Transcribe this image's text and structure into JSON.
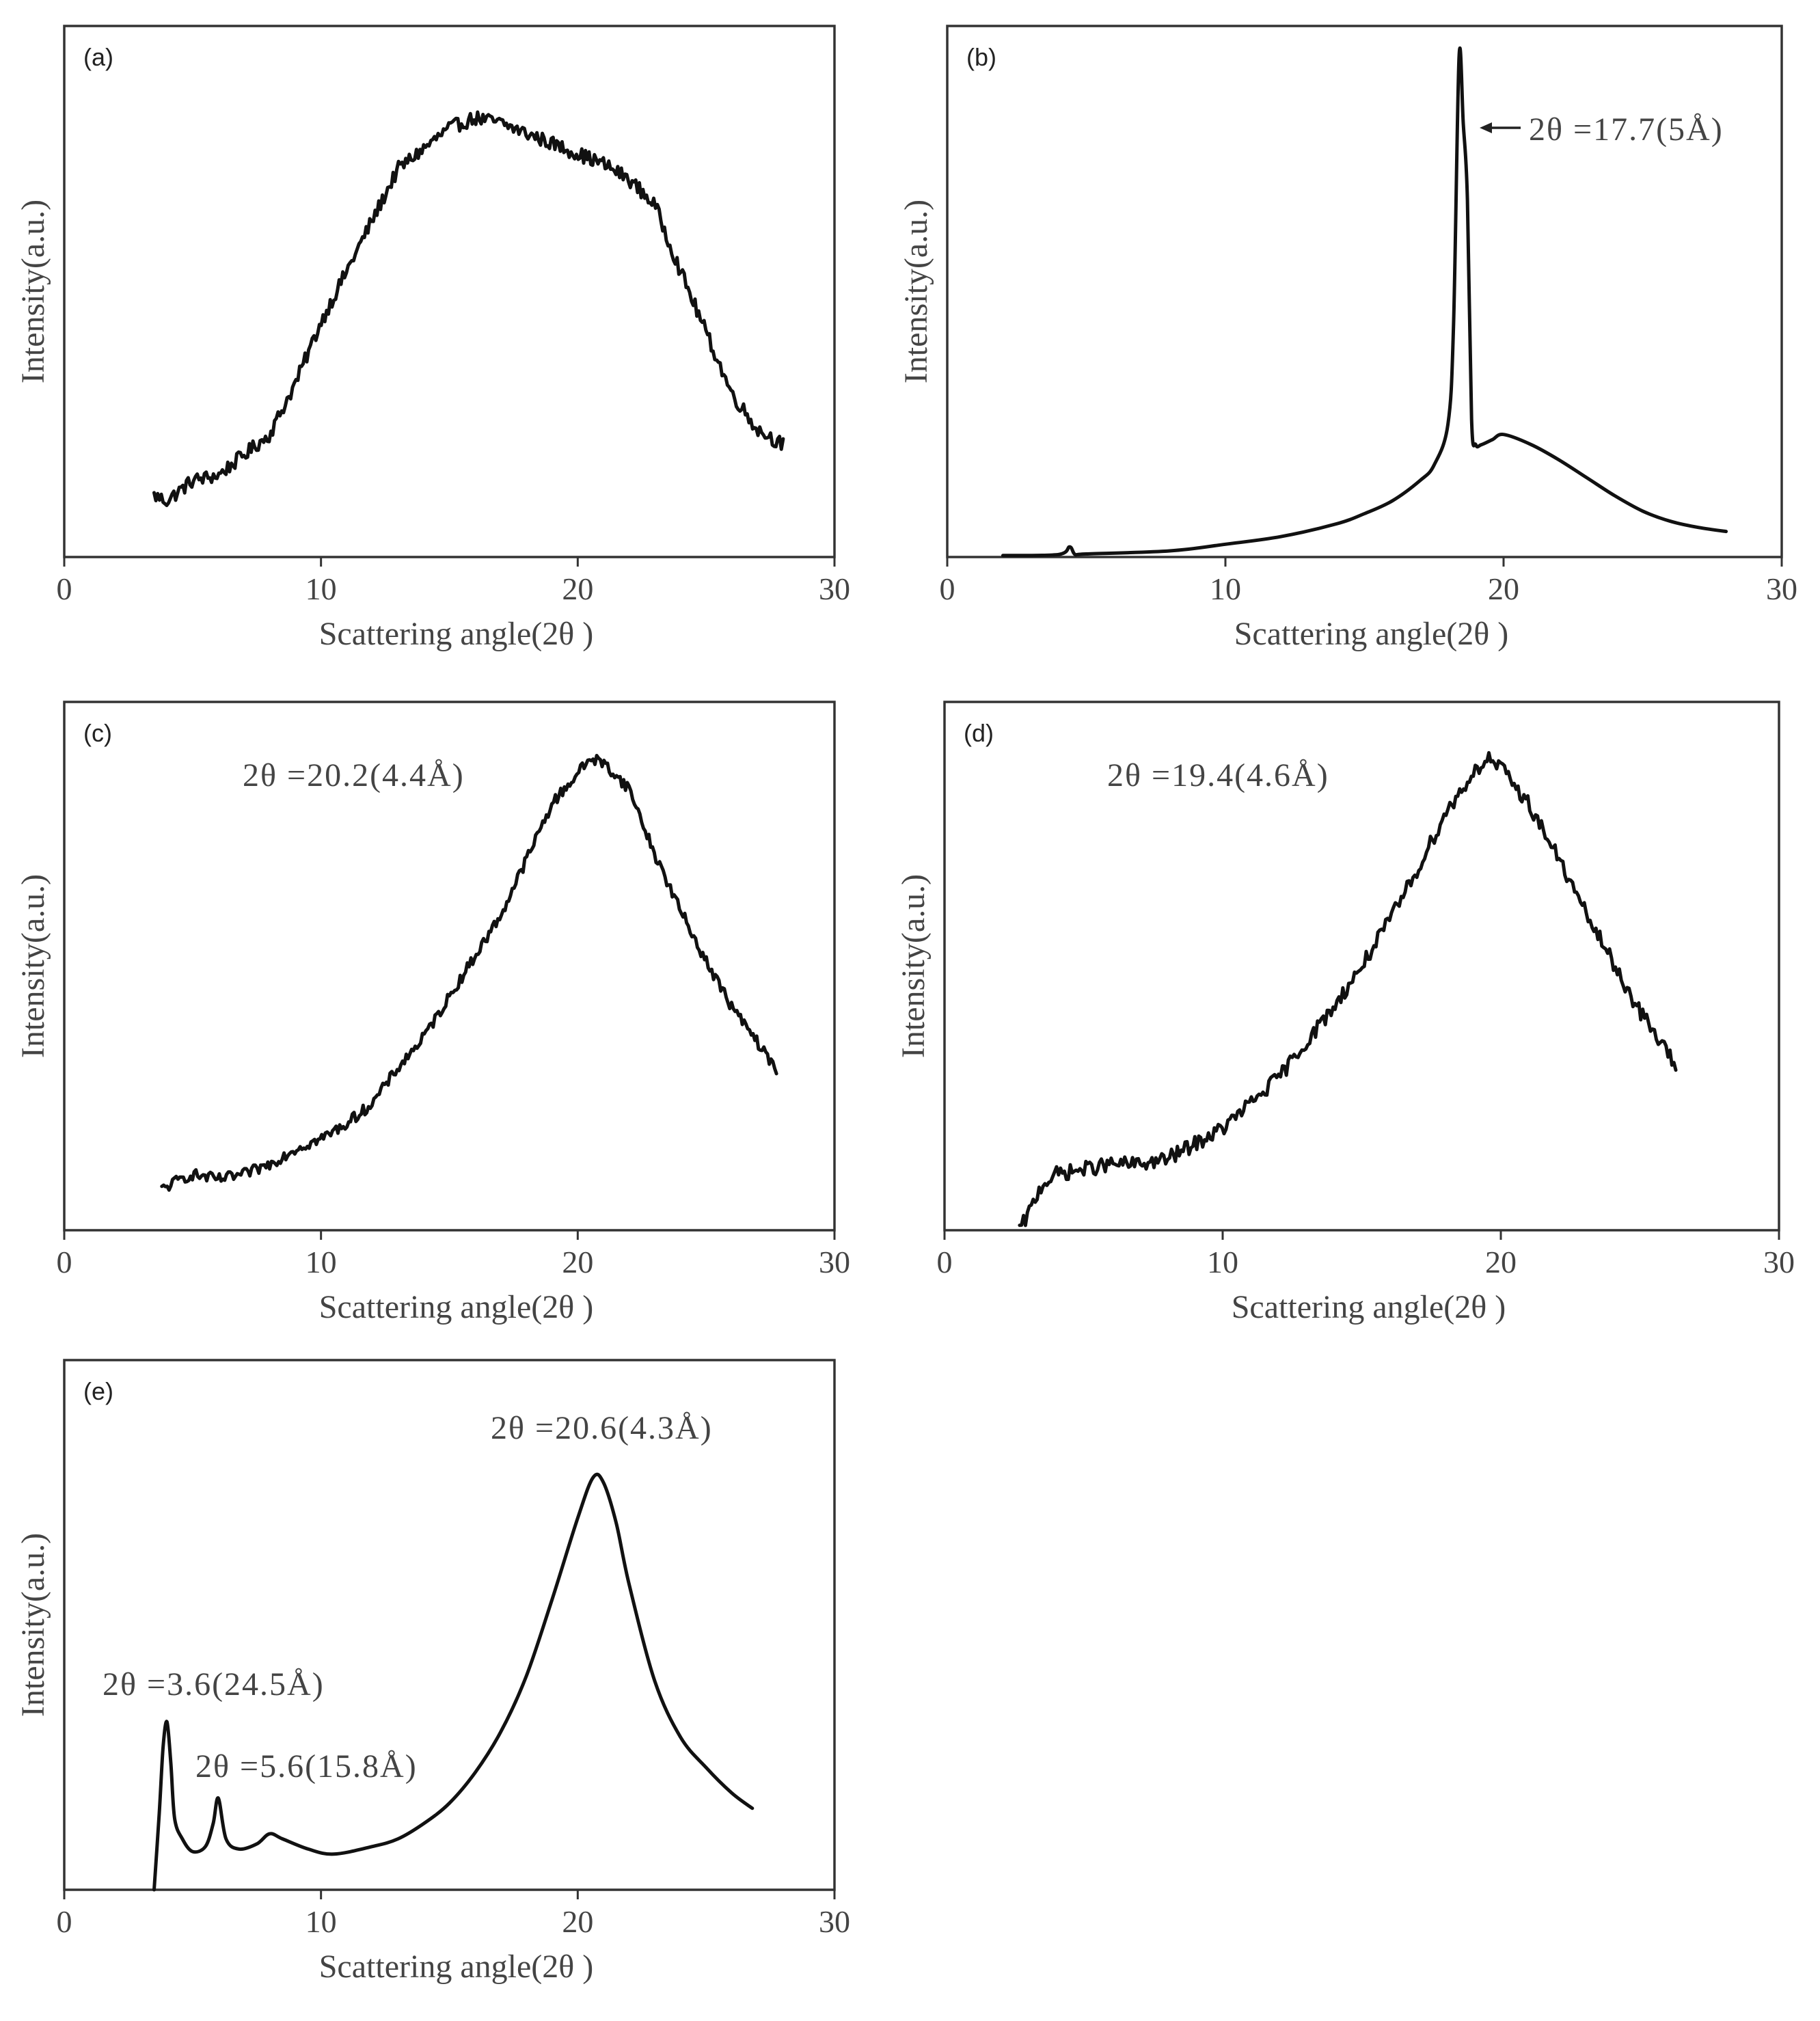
{
  "figure": {
    "background": "#ffffff",
    "line_color": "#111111",
    "axis_color": "#333333"
  },
  "chart_data": [
    {
      "id": "a",
      "type": "line",
      "panel_label": "(a)",
      "xlabel": "Scattering angle(2θ )",
      "ylabel": "Intensity(a.u.)",
      "xlim": [
        0,
        30
      ],
      "ylim": [
        0,
        100
      ],
      "xticks": [
        0,
        10,
        20,
        30
      ],
      "x_tick_labels": [
        "0",
        "10",
        "20",
        "30"
      ],
      "x": [
        3.5,
        4,
        5,
        6,
        7,
        8,
        9,
        10,
        11,
        12,
        13,
        14,
        15,
        16,
        17,
        18,
        19,
        20,
        21,
        22,
        23,
        24,
        25,
        26,
        27,
        28
      ],
      "y": [
        12,
        11,
        15,
        16,
        20,
        24,
        34,
        46,
        56,
        66,
        76,
        80,
        84,
        86,
        85,
        83,
        81,
        79,
        77,
        74,
        69,
        56,
        44,
        32,
        25,
        22
      ],
      "noise": 1.4,
      "annotations": []
    },
    {
      "id": "b",
      "type": "line",
      "panel_label": "(b)",
      "xlabel": "Scattering angle(2θ )",
      "ylabel": "Intensity(a.u.)",
      "xlim": [
        0,
        30
      ],
      "ylim": [
        0,
        100
      ],
      "xticks": [
        0,
        10,
        20,
        30
      ],
      "x_tick_labels": [
        "0",
        "10",
        "20",
        "30"
      ],
      "x": [
        2,
        4,
        4.4,
        4.6,
        5,
        8,
        10,
        12,
        14,
        15,
        16,
        17,
        17.5,
        18.0,
        18.2,
        18.4,
        18.55,
        18.7,
        18.85,
        19,
        19.2,
        19.6,
        20,
        21,
        22,
        23,
        24,
        25,
        26,
        27,
        28
      ],
      "y": [
        0.3,
        0.5,
        2,
        0.5,
        0.6,
        1.2,
        2.5,
        4,
        6.5,
        8.5,
        11,
        15,
        18,
        26,
        45,
        98,
        85,
        70,
        27,
        22,
        22,
        23,
        24,
        22,
        19,
        15.5,
        12,
        9,
        7,
        5.8,
        5
      ],
      "noise": 0,
      "annotations": [
        {
          "text": "2θ =17.7(5Å)",
          "arrow": true
        }
      ]
    },
    {
      "id": "c",
      "type": "line",
      "panel_label": "(c)",
      "xlabel": "Scattering angle(2θ )",
      "ylabel": "Intensity(a.u.)",
      "xlim": [
        0,
        30
      ],
      "ylim": [
        0,
        100
      ],
      "xticks": [
        0,
        10,
        20,
        30
      ],
      "x_tick_labels": [
        "0",
        "10",
        "20",
        "30"
      ],
      "x": [
        3.8,
        4.5,
        5,
        6,
        7,
        8,
        9,
        10,
        11,
        12,
        13,
        14,
        15,
        16,
        17,
        18,
        19,
        20,
        20.5,
        21,
        22,
        23,
        24,
        25,
        26,
        27,
        27.8
      ],
      "y": [
        8,
        10,
        11,
        10,
        11,
        13,
        16,
        18,
        21,
        25,
        32,
        38,
        46,
        54,
        62,
        73,
        84,
        90,
        93,
        92,
        87,
        74,
        63,
        53,
        44,
        37,
        31
      ],
      "noise": 1.1,
      "annotations": [
        {
          "text": "2θ =20.2(4.4Å)",
          "arrow": false
        }
      ]
    },
    {
      "id": "d",
      "type": "line",
      "panel_label": "(d)",
      "xlabel": "Scattering angle(2θ )",
      "ylabel": "Intensity(a.u.)",
      "xlim": [
        0,
        30
      ],
      "ylim": [
        0,
        100
      ],
      "xticks": [
        0,
        10,
        20,
        30
      ],
      "x_tick_labels": [
        "0",
        "10",
        "20",
        "30"
      ],
      "x": [
        2.7,
        3,
        3.5,
        4,
        5,
        6,
        7,
        8,
        9,
        10,
        11,
        12,
        13,
        14,
        15,
        16,
        17,
        18,
        19,
        19.5,
        20,
        21,
        22,
        23,
        24,
        25,
        26,
        26.3
      ],
      "y": [
        0,
        3,
        9,
        11,
        12,
        13,
        13,
        14,
        17,
        20,
        25,
        30,
        37,
        44,
        52,
        61,
        71,
        82,
        90,
        93,
        91,
        84,
        74,
        63,
        53,
        43,
        35,
        32
      ],
      "noise": 1.5,
      "annotations": [
        {
          "text": "2θ =19.4(4.6Å)",
          "arrow": false
        }
      ]
    },
    {
      "id": "e",
      "type": "line",
      "panel_label": "(e)",
      "xlabel": "Scattering angle(2θ )",
      "ylabel": "Intensity(a.u.)",
      "xlim": [
        0,
        30
      ],
      "ylim": [
        0,
        100
      ],
      "xticks": [
        0,
        10,
        20,
        30
      ],
      "x_tick_labels": [
        "0",
        "10",
        "20",
        "30"
      ],
      "x": [
        3.5,
        3.7,
        3.85,
        4.0,
        4.15,
        4.3,
        4.6,
        5,
        5.5,
        5.8,
        6.0,
        6.3,
        6.8,
        7.5,
        8,
        8.5,
        9.5,
        10.5,
        12,
        13,
        14,
        15,
        16,
        17,
        18,
        19,
        20,
        20.6,
        21,
        21.5,
        22,
        23,
        24,
        25,
        26,
        26.8
      ],
      "y": [
        0,
        15,
        28,
        33,
        25,
        14,
        10,
        7.5,
        8.5,
        13,
        18,
        10,
        8,
        9,
        11,
        10,
        8,
        7,
        8.5,
        10,
        13,
        17,
        23,
        31,
        42,
        57,
        73,
        81,
        80,
        72,
        60,
        41,
        30,
        24,
        19,
        16
      ],
      "noise": 0,
      "annotations": [
        {
          "text": "2θ =20.6(4.3Å)",
          "arrow": false
        },
        {
          "text": "2θ =3.6(24.5Å)",
          "arrow": false
        },
        {
          "text": "2θ =5.6(15.8Å)",
          "arrow": false
        }
      ]
    }
  ]
}
